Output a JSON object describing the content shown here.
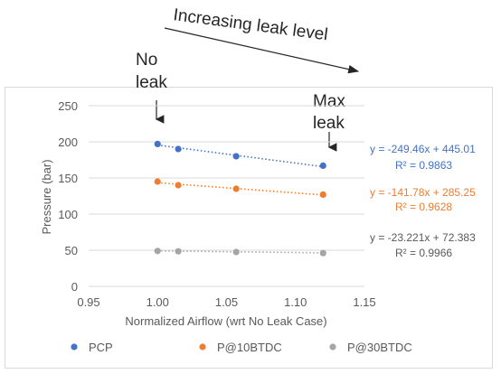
{
  "annotations": {
    "direction_label": "Increasing leak level",
    "no_leak": [
      "No",
      "leak"
    ],
    "max_leak": [
      "Max",
      "leak"
    ]
  },
  "chart_data": {
    "type": "scatter",
    "title": "",
    "xlabel": "Normalized Airflow (wrt No Leak Case)",
    "ylabel": "Pressure (bar)",
    "xlim": [
      0.95,
      1.15
    ],
    "ylim": [
      0,
      250
    ],
    "xticks": [
      "0.95",
      "1.00",
      "1.05",
      "1.10",
      "1.15"
    ],
    "yticks": [
      "0",
      "50",
      "100",
      "150",
      "200",
      "250"
    ],
    "grid": "horizontal",
    "legend_position": "bottom",
    "series": [
      {
        "name": "PCP",
        "color": "#4472c4",
        "x": [
          1.0,
          1.015,
          1.057,
          1.12
        ],
        "y": [
          197,
          190,
          180,
          167
        ],
        "trendline": {
          "slope": -249.46,
          "intercept": 445.01
        },
        "equation": "y = -249.46x + 445.01",
        "r2": "R² = 0.9863"
      },
      {
        "name": "P@10BTDC",
        "color": "#ed7d31",
        "x": [
          1.0,
          1.015,
          1.057,
          1.12
        ],
        "y": [
          145,
          140,
          135,
          127
        ],
        "trendline": {
          "slope": -141.78,
          "intercept": 285.25
        },
        "equation": "y = -141.78x + 285.25",
        "r2": "R² = 0.9628"
      },
      {
        "name": "P@30BTDC",
        "color": "#a5a5a5",
        "x": [
          1.0,
          1.015,
          1.057,
          1.12
        ],
        "y": [
          49,
          48.5,
          47.5,
          46
        ],
        "trendline": {
          "slope": -23.221,
          "intercept": 72.383
        },
        "equation": "y = -23.221x + 72.383",
        "r2": "R² = 0.9966",
        "label_color": "#595959"
      }
    ]
  }
}
